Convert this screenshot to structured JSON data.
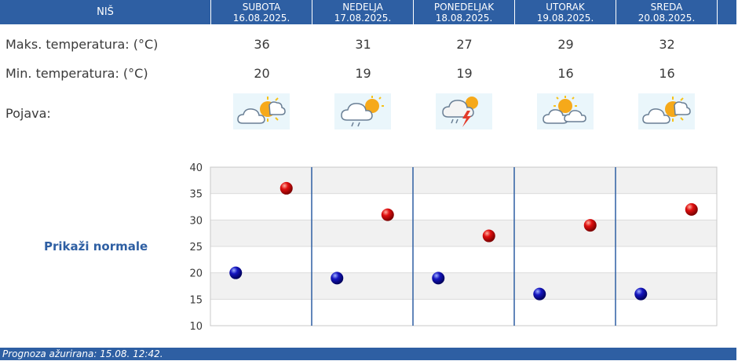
{
  "header": {
    "city": "NIŠ",
    "days": [
      {
        "day": "SUBOTA",
        "date": "16.08.2025."
      },
      {
        "day": "NEDELJA",
        "date": "17.08.2025."
      },
      {
        "day": "PONEDELJAK",
        "date": "18.08.2025."
      },
      {
        "day": "UTORAK",
        "date": "19.08.2025."
      },
      {
        "day": "SREDA",
        "date": "20.08.2025."
      }
    ]
  },
  "rows": {
    "max_label": "Maks. temperatura: (°C)",
    "min_label": "Min. temperatura: (°C)",
    "phenomenon_label": "Pojava:",
    "max": [
      "36",
      "31",
      "27",
      "29",
      "32"
    ],
    "min": [
      "20",
      "19",
      "19",
      "16",
      "16"
    ],
    "icons": [
      "partly-sunny-cloud-icon",
      "cloud-rain-sun-icon",
      "thunderstorm-icon",
      "sun-clouds-icon",
      "partly-sunny-cloud-icon"
    ]
  },
  "normals_label": "Prikaži normale",
  "footer": "Prognoza ažurirana:  15.08. 12:42.",
  "colors": {
    "header": "#2e5fa3",
    "max_dot": "#cc0000",
    "min_dot": "#1010a8"
  },
  "chart_data": {
    "type": "scatter",
    "title": "",
    "xlabel": "",
    "ylabel": "",
    "categories": [
      "SUBOTA",
      "NEDELJA",
      "PONEDELJAK",
      "UTORAK",
      "SREDA"
    ],
    "ylim": [
      10,
      40
    ],
    "yticks": [
      10,
      15,
      20,
      25,
      30,
      35,
      40
    ],
    "grid": true,
    "series": [
      {
        "values": [
          36,
          31,
          27,
          29,
          32
        ]
      },
      {
        "values": [
          20,
          19,
          19,
          16,
          16
        ]
      }
    ]
  }
}
